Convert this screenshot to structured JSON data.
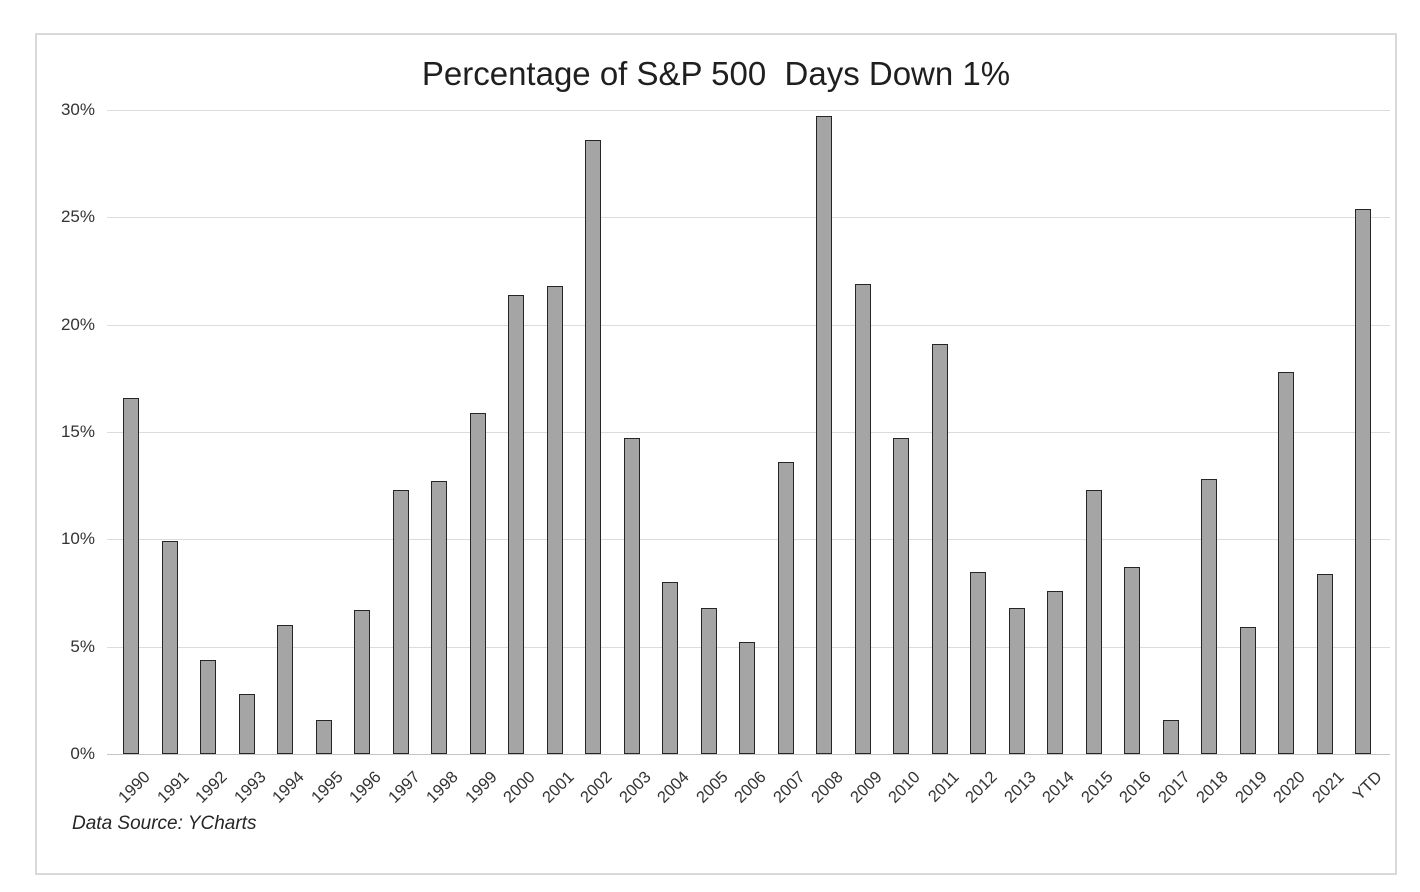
{
  "chart": {
    "frame_border_color": "#d9d9d9",
    "background": "#ffffff",
    "gridline_color": "#dcdcdc",
    "axis_line_color": "#c4c4c4",
    "text_color": "#333333",
    "y_tick_labels": [
      "30%",
      "25%",
      "20%",
      "15%",
      "10%",
      "5%",
      "0%"
    ]
  },
  "chart_data": {
    "type": "bar",
    "title": "Percentage of S&P 500  Days Down 1%",
    "source_note": "Data Source: YCharts",
    "xlabel": "",
    "ylabel": "",
    "ylim": [
      0,
      30
    ],
    "ytick_step": 5,
    "ytick_format": "percent",
    "grid": true,
    "legend": false,
    "bar_color": "#a5a5a5",
    "bar_border_color": "#262626",
    "categories": [
      "1990",
      "1991",
      "1992",
      "1993",
      "1994",
      "1995",
      "1996",
      "1997",
      "1998",
      "1999",
      "2000",
      "2001",
      "2002",
      "2003",
      "2004",
      "2005",
      "2006",
      "2007",
      "2008",
      "2009",
      "2010",
      "2011",
      "2012",
      "2013",
      "2014",
      "2015",
      "2016",
      "2017",
      "2018",
      "2019",
      "2020",
      "2021",
      "YTD"
    ],
    "values": [
      16.6,
      9.9,
      4.4,
      2.8,
      6.0,
      1.6,
      6.7,
      12.3,
      12.7,
      15.9,
      21.4,
      21.8,
      28.6,
      14.7,
      8.0,
      6.8,
      5.2,
      13.6,
      29.7,
      21.9,
      14.7,
      19.1,
      8.5,
      6.8,
      7.6,
      12.3,
      8.7,
      1.6,
      12.8,
      5.9,
      17.8,
      8.4,
      25.4
    ]
  }
}
